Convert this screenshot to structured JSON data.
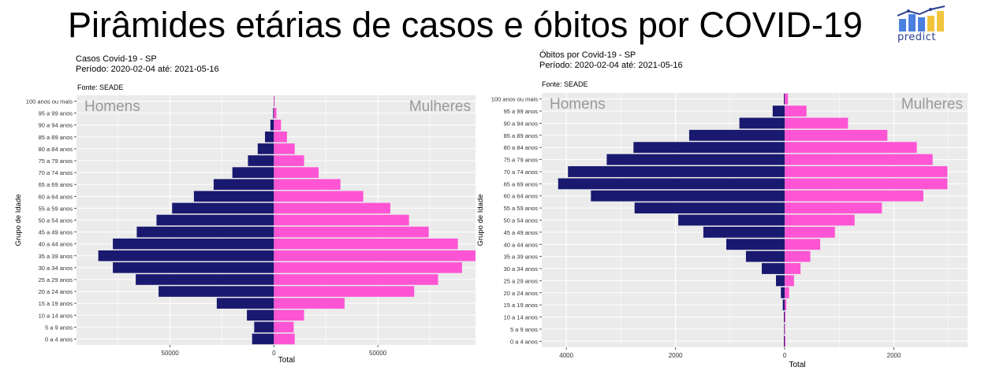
{
  "page": {
    "title": "Pirâmides etárias de casos e óbitos por COVID-19",
    "logo_text": "predict"
  },
  "colors": {
    "men": "#191970",
    "women": "#ff55d4",
    "panel": "#ebebeb",
    "grid": "#ffffff",
    "side_label": "#999999"
  },
  "chart_data": [
    {
      "type": "bar",
      "orientation": "horizontal-pyramid",
      "subtitle_lines": [
        "Casos Covid-19 - SP",
        "Período: 2020-02-04 até: 2021-05-16"
      ],
      "source": "Fonte: SEADE",
      "xlabel": "Total",
      "ylabel": "Grupo de Idade",
      "left_label": "Homens",
      "right_label": "Mulheres",
      "xlim": [
        -95000,
        97000
      ],
      "xticks": [
        -50000,
        0,
        50000
      ],
      "xtick_labels": [
        "50000",
        "0",
        "50000"
      ],
      "categories": [
        "0 a 4 anos",
        "5 a 9 anos",
        "10 a 14 anos",
        "15 a 19 anos",
        "20 a 24 anos",
        "25 a 29 anos",
        "30 a 34 anos",
        "35 a 39 anos",
        "40 a 44 anos",
        "45 a 49 anos",
        "50 a 54 anos",
        "55 a 59 anos",
        "60 a 64 anos",
        "65 a 69 anos",
        "70 a 74 anos",
        "75 a 79 anos",
        "80 a 84 anos",
        "85 a 89 anos",
        "90 a 94 anos",
        "95 a 99 anos",
        "100 anos ou mais"
      ],
      "series": [
        {
          "name": "Homens",
          "values": [
            10500,
            9500,
            13000,
            27500,
            55500,
            66500,
            77500,
            84500,
            77500,
            66000,
            56500,
            49000,
            38500,
            29000,
            20000,
            12500,
            7800,
            4300,
            1700,
            400,
            100
          ]
        },
        {
          "name": "Mulheres",
          "values": [
            10000,
            9500,
            14500,
            34000,
            67500,
            79000,
            90500,
            97000,
            88500,
            74500,
            65000,
            56000,
            43000,
            32000,
            21500,
            14500,
            10000,
            6300,
            3400,
            1200,
            300
          ]
        }
      ],
      "grid": true
    },
    {
      "type": "bar",
      "orientation": "horizontal-pyramid",
      "subtitle_lines": [
        "Óbitos por Covid-19 - SP",
        "Período: 2020-02-04 até: 2021-05-16"
      ],
      "source": "Fonte: SEADE",
      "xlabel": "Total",
      "ylabel": "Grupo de Idade",
      "left_label": "Homens",
      "right_label": "Mulheres",
      "xlim": [
        -4450,
        3350
      ],
      "xticks": [
        -4000,
        -2000,
        0,
        2000
      ],
      "xtick_labels": [
        "4000",
        "2000",
        "0",
        "2000"
      ],
      "categories": [
        "0 a 4 anos",
        "5 a 9 anos",
        "10 a 14 anos",
        "15 a 19 anos",
        "20 a 24 anos",
        "25 a 29 anos",
        "30 a 34 anos",
        "35 a 39 anos",
        "40 a 44 anos",
        "45 a 49 anos",
        "50 a 54 anos",
        "55 a 59 anos",
        "60 a 64 anos",
        "65 a 69 anos",
        "70 a 74 anos",
        "75 a 79 anos",
        "80 a 84 anos",
        "85 a 89 anos",
        "90 a 94 anos",
        "95 a 99 anos",
        "100 anos ou mais"
      ],
      "series": [
        {
          "name": "Homens",
          "values": [
            15,
            10,
            15,
            35,
            70,
            160,
            420,
            710,
            1070,
            1490,
            1950,
            2750,
            3550,
            4150,
            3970,
            3260,
            2770,
            1750,
            830,
            220,
            15
          ]
        },
        {
          "name": "Mulheres",
          "values": [
            15,
            10,
            15,
            30,
            80,
            170,
            290,
            470,
            650,
            920,
            1280,
            1780,
            2540,
            2980,
            2980,
            2710,
            2420,
            1880,
            1160,
            400,
            60
          ]
        }
      ],
      "grid": true
    }
  ]
}
